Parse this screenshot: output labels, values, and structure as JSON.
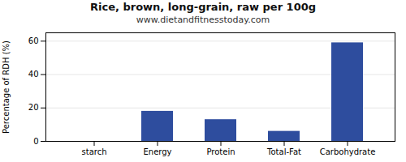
{
  "chart_data": {
    "type": "bar",
    "title": "Rice, brown, long-grain, raw per 100g",
    "subtitle": "www.dietandfitnesstoday.com",
    "categories": [
      "starch",
      "Energy",
      "Protein",
      "Total-Fat",
      "Carbohydrate"
    ],
    "values": [
      0,
      18,
      13,
      6,
      59
    ],
    "color": "#2e4d9e",
    "ylabel": "Percentage of RDH (%)",
    "ylim": [
      0,
      65
    ],
    "yticks": [
      0,
      20,
      40,
      60
    ],
    "grid": true
  }
}
